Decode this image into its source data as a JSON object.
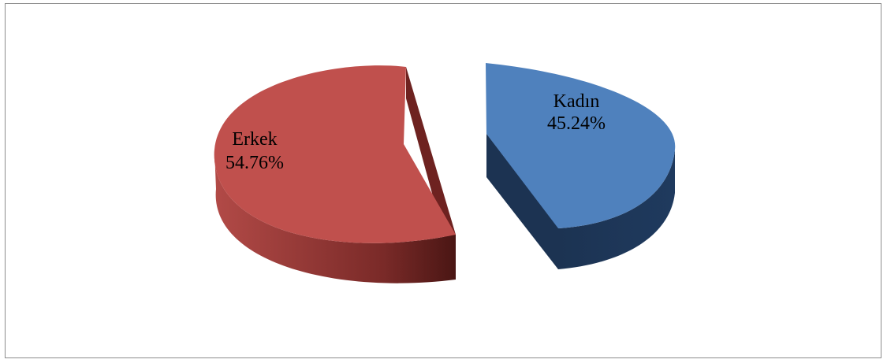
{
  "chart_data": {
    "type": "pie",
    "title": "",
    "slices": [
      {
        "label": "Kadın",
        "value": 45.24,
        "value_label": "45.24%",
        "color": "#4f81bd",
        "side_color": "#1f3552"
      },
      {
        "label": "Erkek",
        "value": 54.76,
        "value_label": "54.76%",
        "color": "#c0504d",
        "side_color": "#6e2220"
      }
    ],
    "style": "3d-exploded",
    "legend": "none"
  }
}
